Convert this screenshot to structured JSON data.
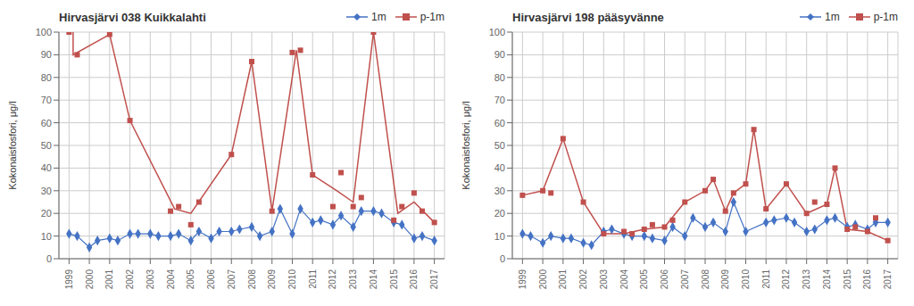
{
  "chart_data": [
    {
      "type": "line",
      "title": "Hirvasjärvi 038 Kuikkalahti",
      "y_label": "Kokonaisfosfori, μg/l",
      "xlim": [
        1998.5,
        2017.5
      ],
      "ylim": [
        0,
        100
      ],
      "xticks": [
        1999,
        2000,
        2001,
        2002,
        2003,
        2004,
        2005,
        2006,
        2007,
        2008,
        2009,
        2010,
        2011,
        2012,
        2013,
        2014,
        2015,
        2016,
        2017
      ],
      "yticks": [
        0,
        10,
        20,
        30,
        40,
        50,
        60,
        70,
        80,
        90,
        100
      ],
      "grid": true,
      "legend": "upper right",
      "series": [
        {
          "name": "1m",
          "type": "line",
          "marker": "diamond",
          "color": "#4472C4",
          "x": [
            1999,
            1999.4,
            2000,
            2000.4,
            2001,
            2001.4,
            2002,
            2002.4,
            2003,
            2003.4,
            2004,
            2004.4,
            2005,
            2005.4,
            2006,
            2006.4,
            2007,
            2007.4,
            2008,
            2008.4,
            2009,
            2009.4,
            2010,
            2010.4,
            2011,
            2011.4,
            2012,
            2012.4,
            2013,
            2013.4,
            2014,
            2014.4,
            2015,
            2015.4,
            2016,
            2016.4,
            2017
          ],
          "values": [
            11,
            10,
            5,
            8,
            9,
            8,
            11,
            11,
            11,
            10,
            10,
            11,
            8,
            12,
            9,
            12,
            12,
            13,
            14,
            10,
            12,
            22,
            11,
            22,
            16,
            17,
            15,
            19,
            14,
            21,
            21,
            20,
            16,
            15,
            9,
            10,
            8
          ]
        },
        {
          "name": "p-1m",
          "type": "scatter",
          "marker": "square",
          "color": "#C0504D",
          "x": [
            1999,
            1999.4,
            2001,
            2002,
            2004,
            2004.4,
            2005,
            2005.4,
            2007,
            2008,
            2009,
            2010,
            2010.4,
            2011,
            2012,
            2012.4,
            2013,
            2013.4,
            2014,
            2015,
            2015.4,
            2016,
            2016.4,
            2017
          ],
          "values": [
            100,
            90,
            99,
            61,
            21,
            23,
            15,
            25,
            46,
            87,
            21,
            91,
            92,
            37,
            23,
            38,
            23,
            27,
            100,
            17,
            23,
            29,
            21,
            16
          ]
        },
        {
          "type": "line",
          "marker": "none",
          "color": "#C0504D",
          "x": [
            1999.2,
            1999.2,
            2001,
            2002,
            2004.2,
            2005,
            2007,
            2008,
            2009,
            2010.2,
            2011,
            2012.2,
            2013,
            2014,
            2015.2,
            2016,
            2017
          ],
          "values": [
            100,
            90,
            99,
            61,
            22,
            20,
            46,
            87,
            21,
            92,
            37,
            30,
            25,
            100,
            20,
            25,
            16
          ]
        }
      ]
    },
    {
      "type": "line",
      "title": "Hirvasjärvi 198  pääsyvänne",
      "y_label": "Kokonaisfosfori, μg/l",
      "xlim": [
        1998.5,
        2017.5
      ],
      "ylim": [
        0,
        100
      ],
      "xticks": [
        1999,
        2000,
        2001,
        2002,
        2003,
        2004,
        2005,
        2006,
        2007,
        2008,
        2009,
        2010,
        2011,
        2012,
        2013,
        2014,
        2015,
        2016,
        2017
      ],
      "yticks": [
        0,
        10,
        20,
        30,
        40,
        50,
        60,
        70,
        80,
        90,
        100
      ],
      "grid": true,
      "legend": "upper right",
      "series": [
        {
          "name": "1m",
          "type": "line",
          "marker": "diamond",
          "color": "#4472C4",
          "x": [
            1999,
            1999.4,
            2000,
            2000.4,
            2001,
            2001.4,
            2002,
            2002.4,
            2003,
            2003.4,
            2004,
            2004.4,
            2005,
            2005.4,
            2006,
            2006.4,
            2007,
            2007.4,
            2008,
            2008.4,
            2009,
            2009.4,
            2010,
            2011,
            2011.4,
            2012,
            2012.4,
            2013,
            2013.4,
            2014,
            2014.4,
            2015,
            2015.4,
            2016,
            2016.4,
            2017
          ],
          "values": [
            11,
            10,
            7,
            10,
            9,
            9,
            7,
            6,
            12,
            13,
            11,
            10,
            10,
            9,
            8,
            14,
            10,
            18,
            14,
            16,
            12,
            25,
            12,
            16,
            17,
            18,
            16,
            12,
            13,
            17,
            18,
            14,
            15,
            13,
            16,
            16
          ]
        },
        {
          "name": "p-1m",
          "type": "scatter",
          "marker": "square",
          "color": "#C0504D",
          "x": [
            1999,
            2000,
            2000.4,
            2001,
            2002,
            2003,
            2004,
            2004.4,
            2005,
            2005.4,
            2006,
            2006.4,
            2007,
            2008,
            2008.4,
            2009,
            2009.4,
            2010,
            2010.4,
            2011,
            2012,
            2013,
            2013.4,
            2014,
            2014.4,
            2015,
            2015.4,
            2016,
            2016.4,
            2017
          ],
          "values": [
            28,
            30,
            29,
            53,
            25,
            11,
            12,
            11,
            13,
            15,
            14,
            17,
            25,
            30,
            35,
            21,
            29,
            33,
            57,
            22,
            33,
            20,
            25,
            24,
            40,
            13,
            14,
            12,
            18,
            8
          ]
        },
        {
          "type": "line",
          "marker": "none",
          "color": "#C0504D",
          "x": [
            1999,
            2000,
            2001,
            2002,
            2003,
            2004,
            2005,
            2006,
            2007,
            2008,
            2008.4,
            2009,
            2009.4,
            2010,
            2010.4,
            2011,
            2012,
            2013,
            2014,
            2014.4,
            2015,
            2016,
            2017
          ],
          "values": [
            28,
            30,
            53,
            25,
            11,
            11,
            13,
            14,
            25,
            30,
            35,
            21,
            29,
            33,
            57,
            22,
            33,
            20,
            24,
            40,
            13,
            12,
            8
          ]
        }
      ]
    }
  ]
}
